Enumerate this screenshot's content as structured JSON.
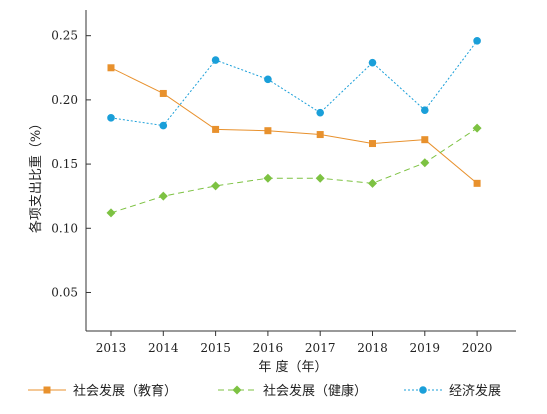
{
  "chart_data": {
    "type": "line",
    "title": "",
    "xlabel": "年 度（年）",
    "ylabel": "各项支出比重（%）",
    "x": [
      2013,
      2014,
      2015,
      2016,
      2017,
      2018,
      2019,
      2020
    ],
    "ylim": [
      0.02,
      0.27
    ],
    "yticks": [
      0.05,
      0.1,
      0.15,
      0.2,
      0.25
    ],
    "ytick_labels": [
      "0.05",
      "0.10",
      "0.15",
      "0.20",
      "0.25"
    ],
    "grid": false,
    "legend_position": "bottom",
    "series": [
      {
        "name": "社会发展（教育）",
        "values": [
          0.225,
          0.205,
          0.177,
          0.176,
          0.173,
          0.166,
          0.169,
          0.135
        ],
        "color": "#E8912D",
        "line_style": "solid",
        "marker": "square"
      },
      {
        "name": "社会发展（健康）",
        "values": [
          0.112,
          0.125,
          0.133,
          0.139,
          0.139,
          0.135,
          0.151,
          0.178
        ],
        "color": "#7DC242",
        "line_style": "dashed",
        "marker": "diamond"
      },
      {
        "name": "经济发展",
        "values": [
          0.186,
          0.18,
          0.231,
          0.216,
          0.19,
          0.229,
          0.192,
          0.246
        ],
        "color": "#1A9FD9",
        "line_style": "dotted",
        "marker": "circle"
      }
    ]
  }
}
